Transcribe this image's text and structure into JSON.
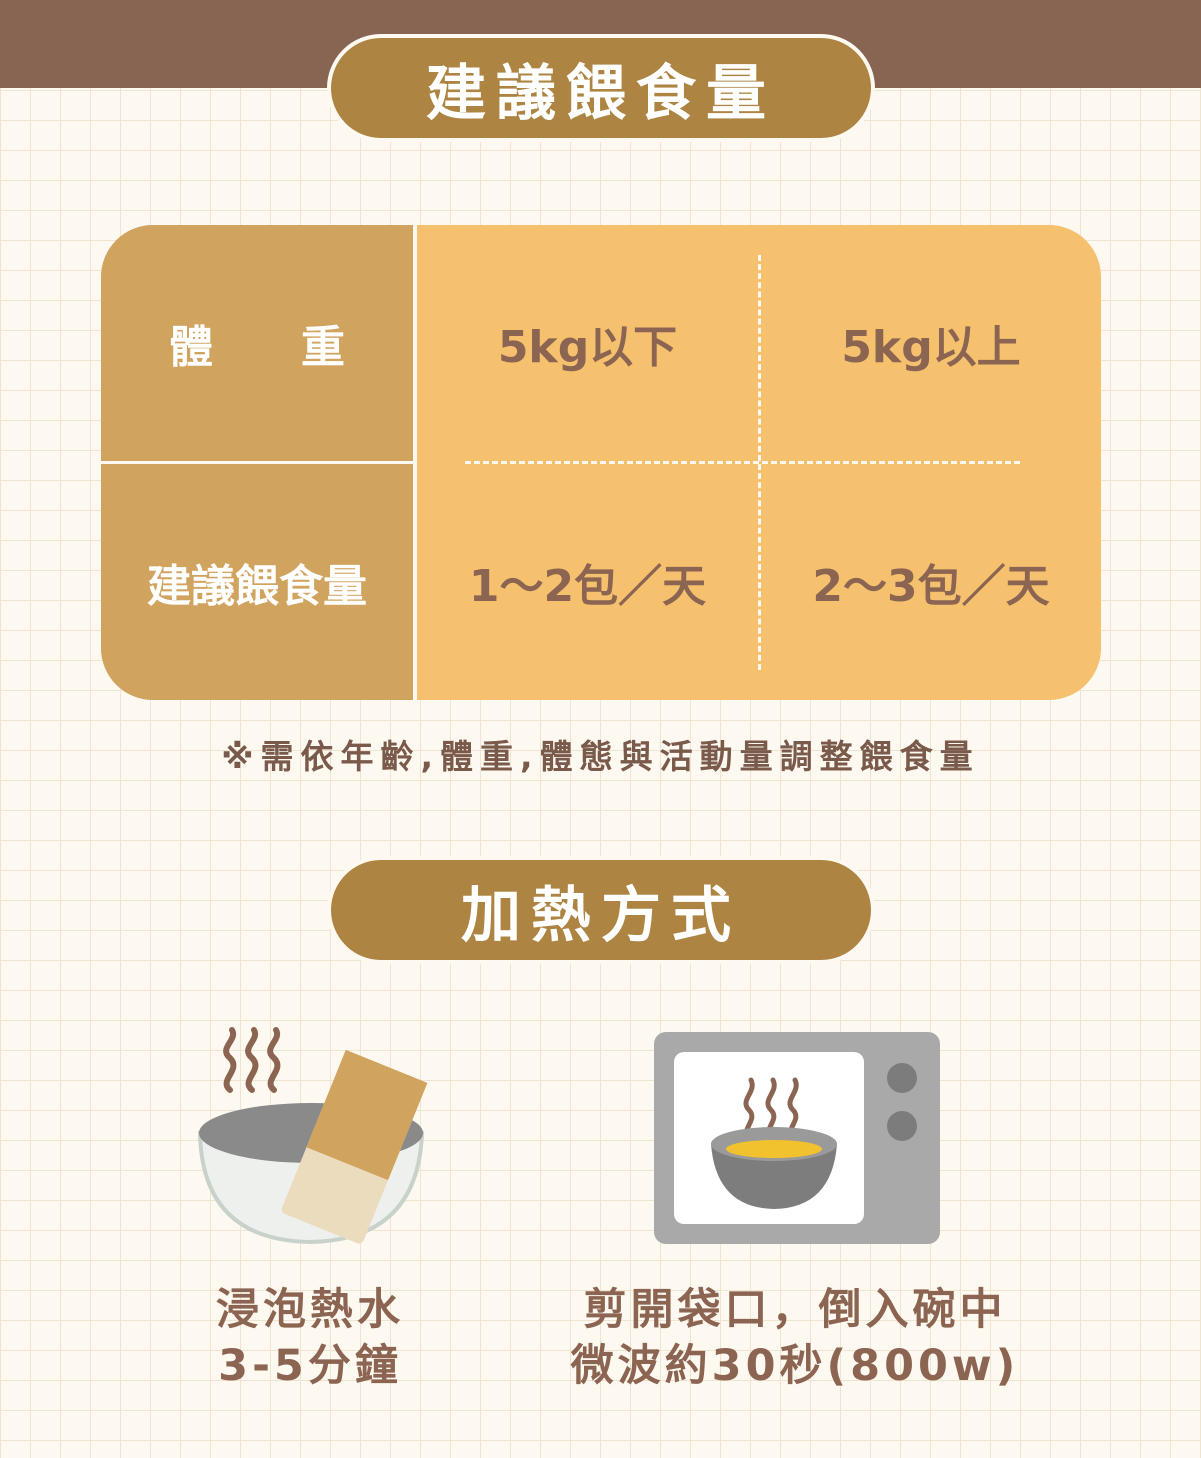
{
  "header": {
    "title": "建議餵食量"
  },
  "table": {
    "row1_label": "體　　重",
    "row2_label": "建議餵食量",
    "col1_weight": "5kg以下",
    "col2_weight": "5kg以上",
    "col1_amount": "1～2包／天",
    "col2_amount": "2～3包／天"
  },
  "note": "※需依年齡,體重,體態與活動量調整餵食量",
  "section2": {
    "title": "加熱方式"
  },
  "methods": [
    {
      "icon": "soaking-bowl-icon",
      "line1": "浸泡熱水",
      "line2": "3-5分鐘"
    },
    {
      "icon": "microwave-icon",
      "line1": "剪開袋口，倒入碗中",
      "line2": "微波約30秒(800w)"
    }
  ],
  "colors": {
    "brown_bar": "#886552",
    "pill": "#ad8441",
    "table_left": "#d0a35f",
    "table_right": "#f6c16e",
    "text_brown": "#8b6551"
  }
}
